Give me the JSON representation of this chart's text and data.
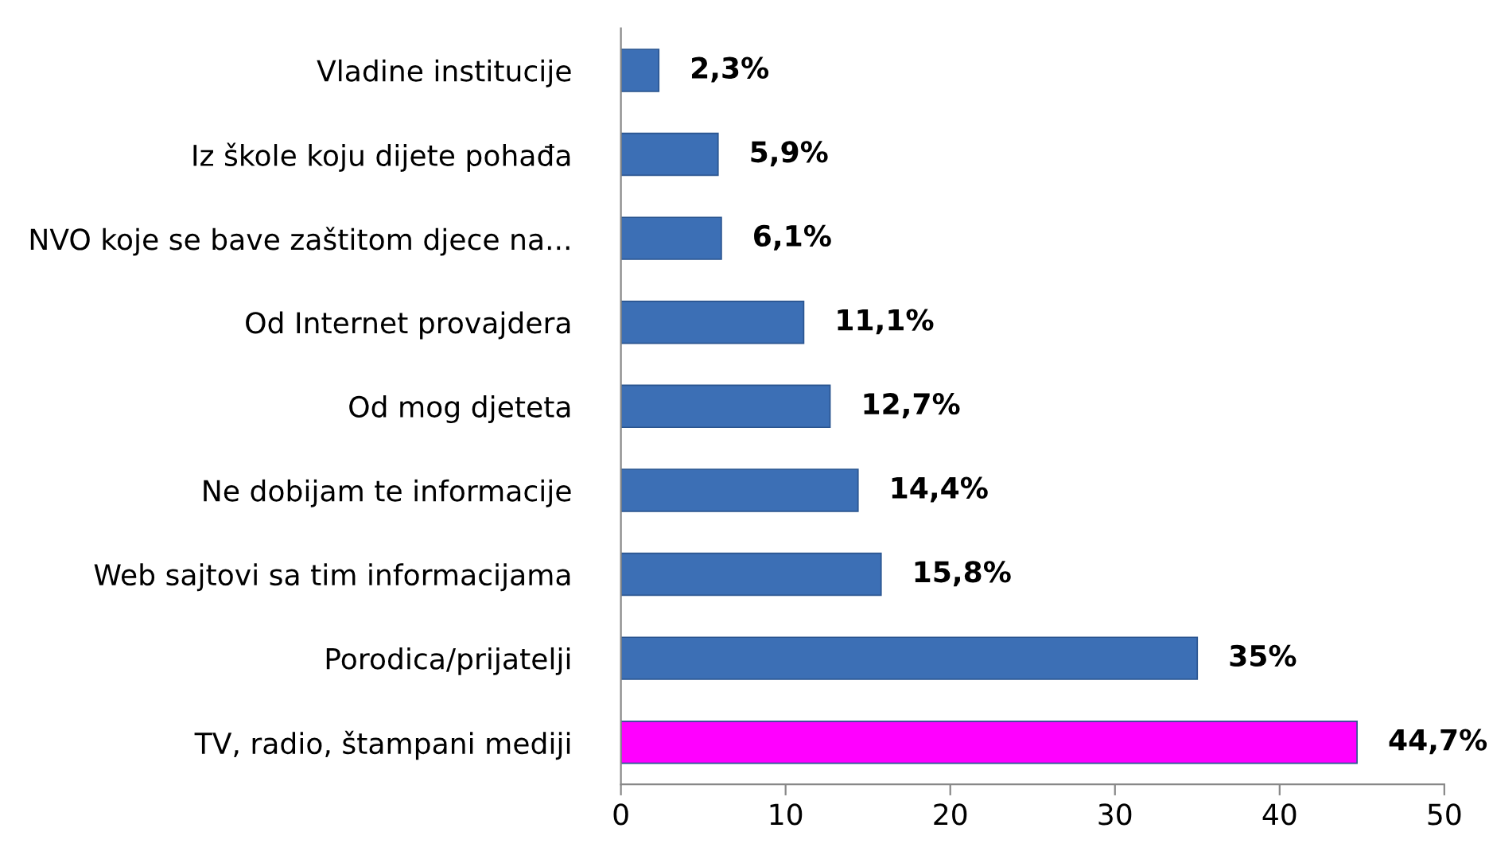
{
  "chart_data": {
    "type": "bar",
    "orientation": "horizontal",
    "categories": [
      "Vladine institucije",
      "Iz škole koju dijete pohađa",
      "NVO koje se bave zaštitom djece na...",
      "Od Internet provajdera",
      "Od mog djeteta",
      "Ne dobijam te informacije",
      "Web sajtovi sa tim informacijama",
      "Porodica/prijatelji",
      "TV, radio, štampani mediji"
    ],
    "values": [
      2.3,
      5.9,
      6.1,
      11.1,
      12.7,
      14.4,
      15.8,
      35,
      44.7
    ],
    "colors": [
      "#3c6fb5",
      "#3c6fb5",
      "#3c6fb5",
      "#3c6fb5",
      "#3c6fb5",
      "#3c6fb5",
      "#3c6fb5",
      "#3c6fb5",
      "#ff00ff"
    ],
    "value_labels": [
      "2,3%",
      "5,9%",
      "6,1%",
      "11,1%",
      "12,7%",
      "14,4%",
      "15,8%",
      "35%",
      "44,7%"
    ],
    "xlim": [
      0,
      50
    ],
    "xticks": [
      0,
      10,
      20,
      30,
      40,
      50
    ],
    "grid": false,
    "legend": false
  }
}
